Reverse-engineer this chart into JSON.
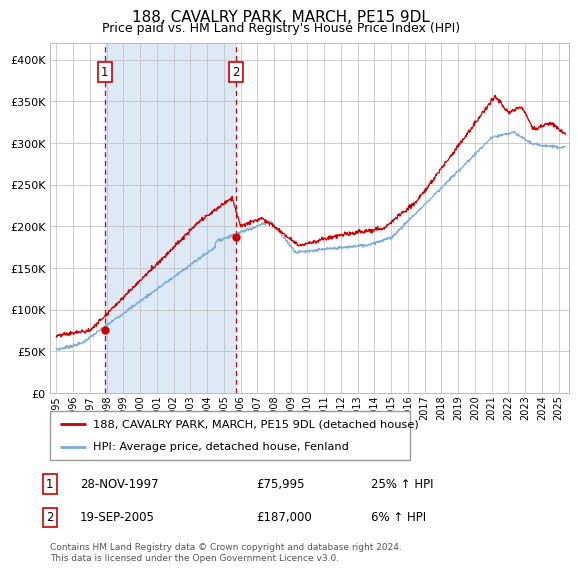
{
  "title": "188, CAVALRY PARK, MARCH, PE15 9DL",
  "subtitle": "Price paid vs. HM Land Registry's House Price Index (HPI)",
  "legend_line1": "188, CAVALRY PARK, MARCH, PE15 9DL (detached house)",
  "legend_line2": "HPI: Average price, detached house, Fenland",
  "annotation1_date": "28-NOV-1997",
  "annotation1_price": "£75,995",
  "annotation1_hpi": "25% ↑ HPI",
  "annotation2_date": "19-SEP-2005",
  "annotation2_price": "£187,000",
  "annotation2_hpi": "6% ↑ HPI",
  "footer": "Contains HM Land Registry data © Crown copyright and database right 2024.\nThis data is licensed under the Open Government Licence v3.0.",
  "red_color": "#cc0000",
  "blue_color": "#7aaed6",
  "bg_color": "#ddeaf6",
  "grid_color": "#bbbbbb",
  "sale1_year": 1997.9,
  "sale1_value": 75995,
  "sale2_year": 2005.72,
  "sale2_value": 187000,
  "ylim": [
    0,
    420000
  ],
  "yticks": [
    0,
    50000,
    100000,
    150000,
    200000,
    250000,
    300000,
    350000,
    400000
  ],
  "xlim_start": 1994.6,
  "xlim_end": 2025.6
}
